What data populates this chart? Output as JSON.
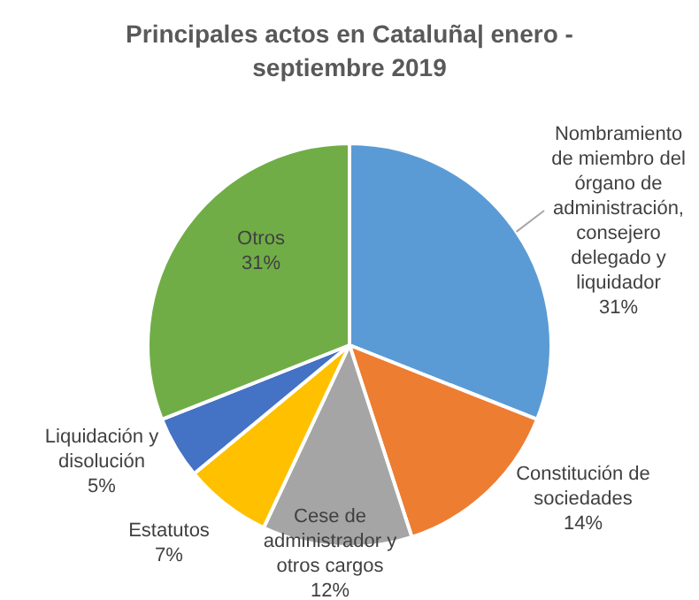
{
  "chart_data": {
    "type": "pie",
    "title": "Principales actos en Cataluña| enero -septiembre 2019",
    "categories": [
      "Nombramiento de miembro del órgano de administración, consejero delegado y liquidador",
      "Constitución de sociedades",
      "Cese de administrador y otros cargos",
      "Estatutos",
      "Liquidación y disolución",
      "Otros"
    ],
    "values": [
      31,
      14,
      12,
      7,
      5,
      31
    ],
    "value_labels": [
      "31%",
      "14%",
      "12%",
      "7%",
      "5%",
      "31%"
    ],
    "colors": [
      "#5b9bd5",
      "#ed7d31",
      "#a5a5a5",
      "#ffc000",
      "#4472c4",
      "#70ad47"
    ],
    "legend": false
  }
}
